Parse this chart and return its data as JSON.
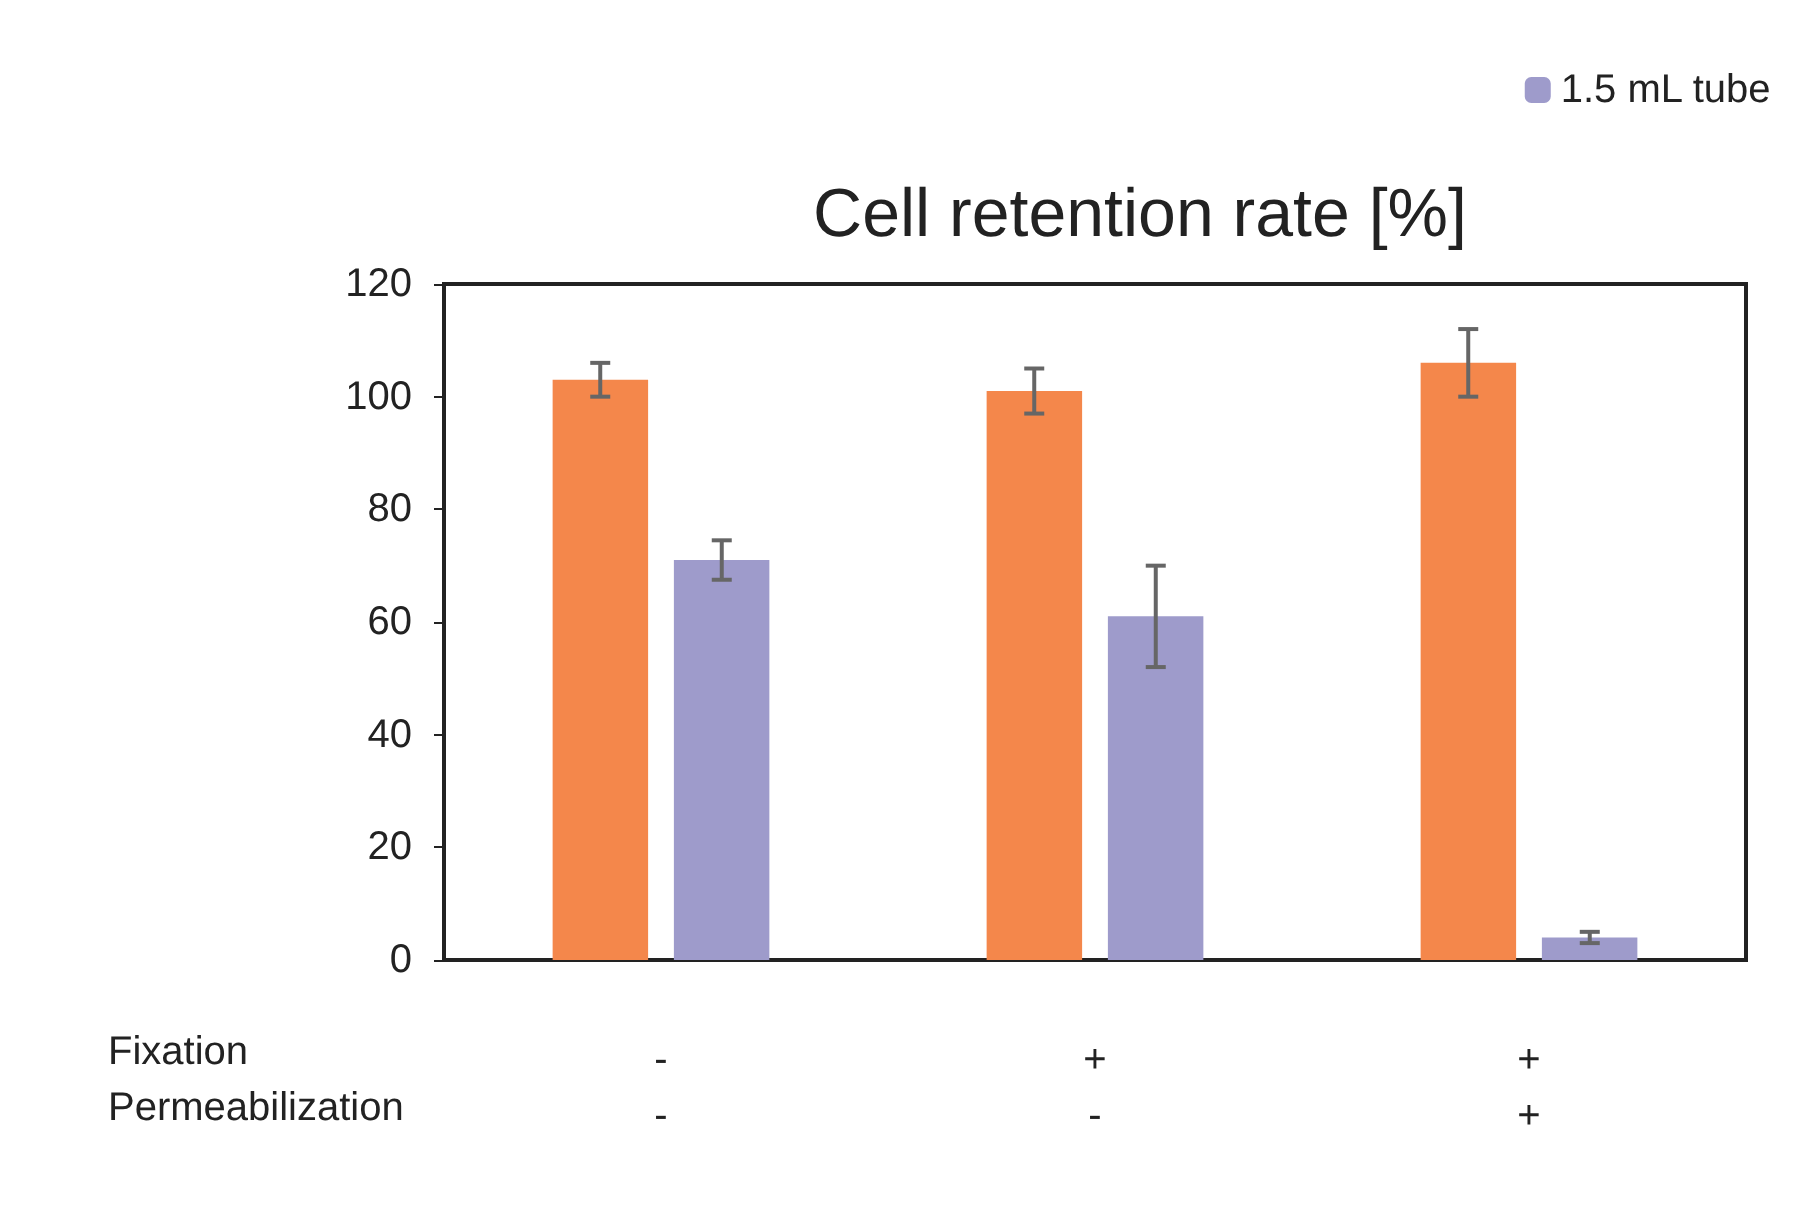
{
  "chart_data": {
    "type": "bar",
    "title": "Cell retention rate [%]",
    "categories": [
      "-\n-",
      "+\n-",
      "+\n+"
    ],
    "annotations": [
      "Fixation",
      "Permeabilization"
    ],
    "series": [
      {
        "color": "#f4874b",
        "values": [
          103,
          101,
          106
        ],
        "errors": [
          3,
          4,
          6
        ]
      },
      {
        "name": "1.5 mL tube",
        "color": "#9e9bcb",
        "values": [
          71,
          61,
          4
        ],
        "errors": [
          3.5,
          9,
          1
        ]
      }
    ],
    "ylim": [
      0,
      120
    ],
    "yticks": [
      0,
      20,
      40,
      60,
      80,
      100,
      120
    ],
    "grid": false,
    "legend": "top right"
  }
}
